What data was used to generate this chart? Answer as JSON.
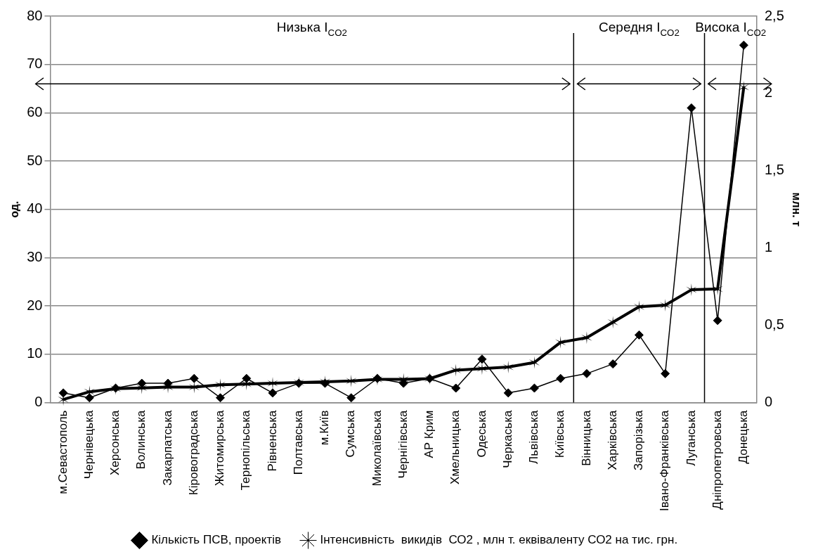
{
  "chart_data": {
    "type": "line",
    "categories": [
      "м.Севастополь",
      "Чернівецька",
      "Херсонська",
      "Волинська",
      "Закарпатська",
      "Кіровоградська",
      "Житомирська",
      "Тернопільська",
      "Рівненська",
      "Полтавська",
      "м.Київ",
      "Сумська",
      "Миколаївська",
      "Чернігівська",
      "АР Крим",
      "Хмельницька",
      "Одеська",
      "Черкаська",
      "Львівська",
      "Київська",
      "Вінницька",
      "Харківська",
      "Запорізька",
      "Івано-Франківська",
      "Луганська",
      "Дніпропетровська",
      "Донецька"
    ],
    "series": [
      {
        "name": "Кількість ПСВ, проектів",
        "color": "#000000",
        "marker": "diamond",
        "values": [
          2,
          1,
          3,
          4,
          4,
          5,
          1,
          5,
          2,
          4,
          4,
          1,
          5,
          4,
          5,
          3,
          9,
          2,
          3,
          5,
          6,
          8,
          14,
          6,
          61,
          17,
          74
        ]
      },
      {
        "name": "Інтенсивність  викидів  СО2 , млн т. еквіваленту СО2 на тис. грн.",
        "color": "#000000",
        "marker": "cross",
        "axis": "y2",
        "values": [
          0.02,
          0.07,
          0.09,
          0.095,
          0.1,
          0.1,
          0.115,
          0.12,
          0.125,
          0.13,
          0.135,
          0.14,
          0.15,
          0.15,
          0.155,
          0.21,
          0.22,
          0.23,
          0.26,
          0.39,
          0.42,
          0.52,
          0.62,
          0.63,
          0.73,
          0.735,
          2.04
        ]
      }
    ],
    "ylabel": "од.",
    "y2label": "млн. т",
    "ylim": [
      0,
      80
    ],
    "yticks": [
      0,
      10,
      20,
      30,
      40,
      50,
      60,
      70,
      80
    ],
    "y2lim": [
      0,
      2.5
    ],
    "y2ticks": [
      0,
      {
        "value": 0.5,
        "label": "0,5"
      },
      1,
      {
        "value": 1.5,
        "label": "1,5"
      },
      2,
      {
        "value": 2.5,
        "label": "2,5"
      }
    ],
    "annotations": [
      "Низька I$_{CO2}$",
      "Середня I$_{CO2}$",
      "Висока I$_{CO2}$"
    ],
    "grid": "y",
    "legend": "bottom"
  }
}
